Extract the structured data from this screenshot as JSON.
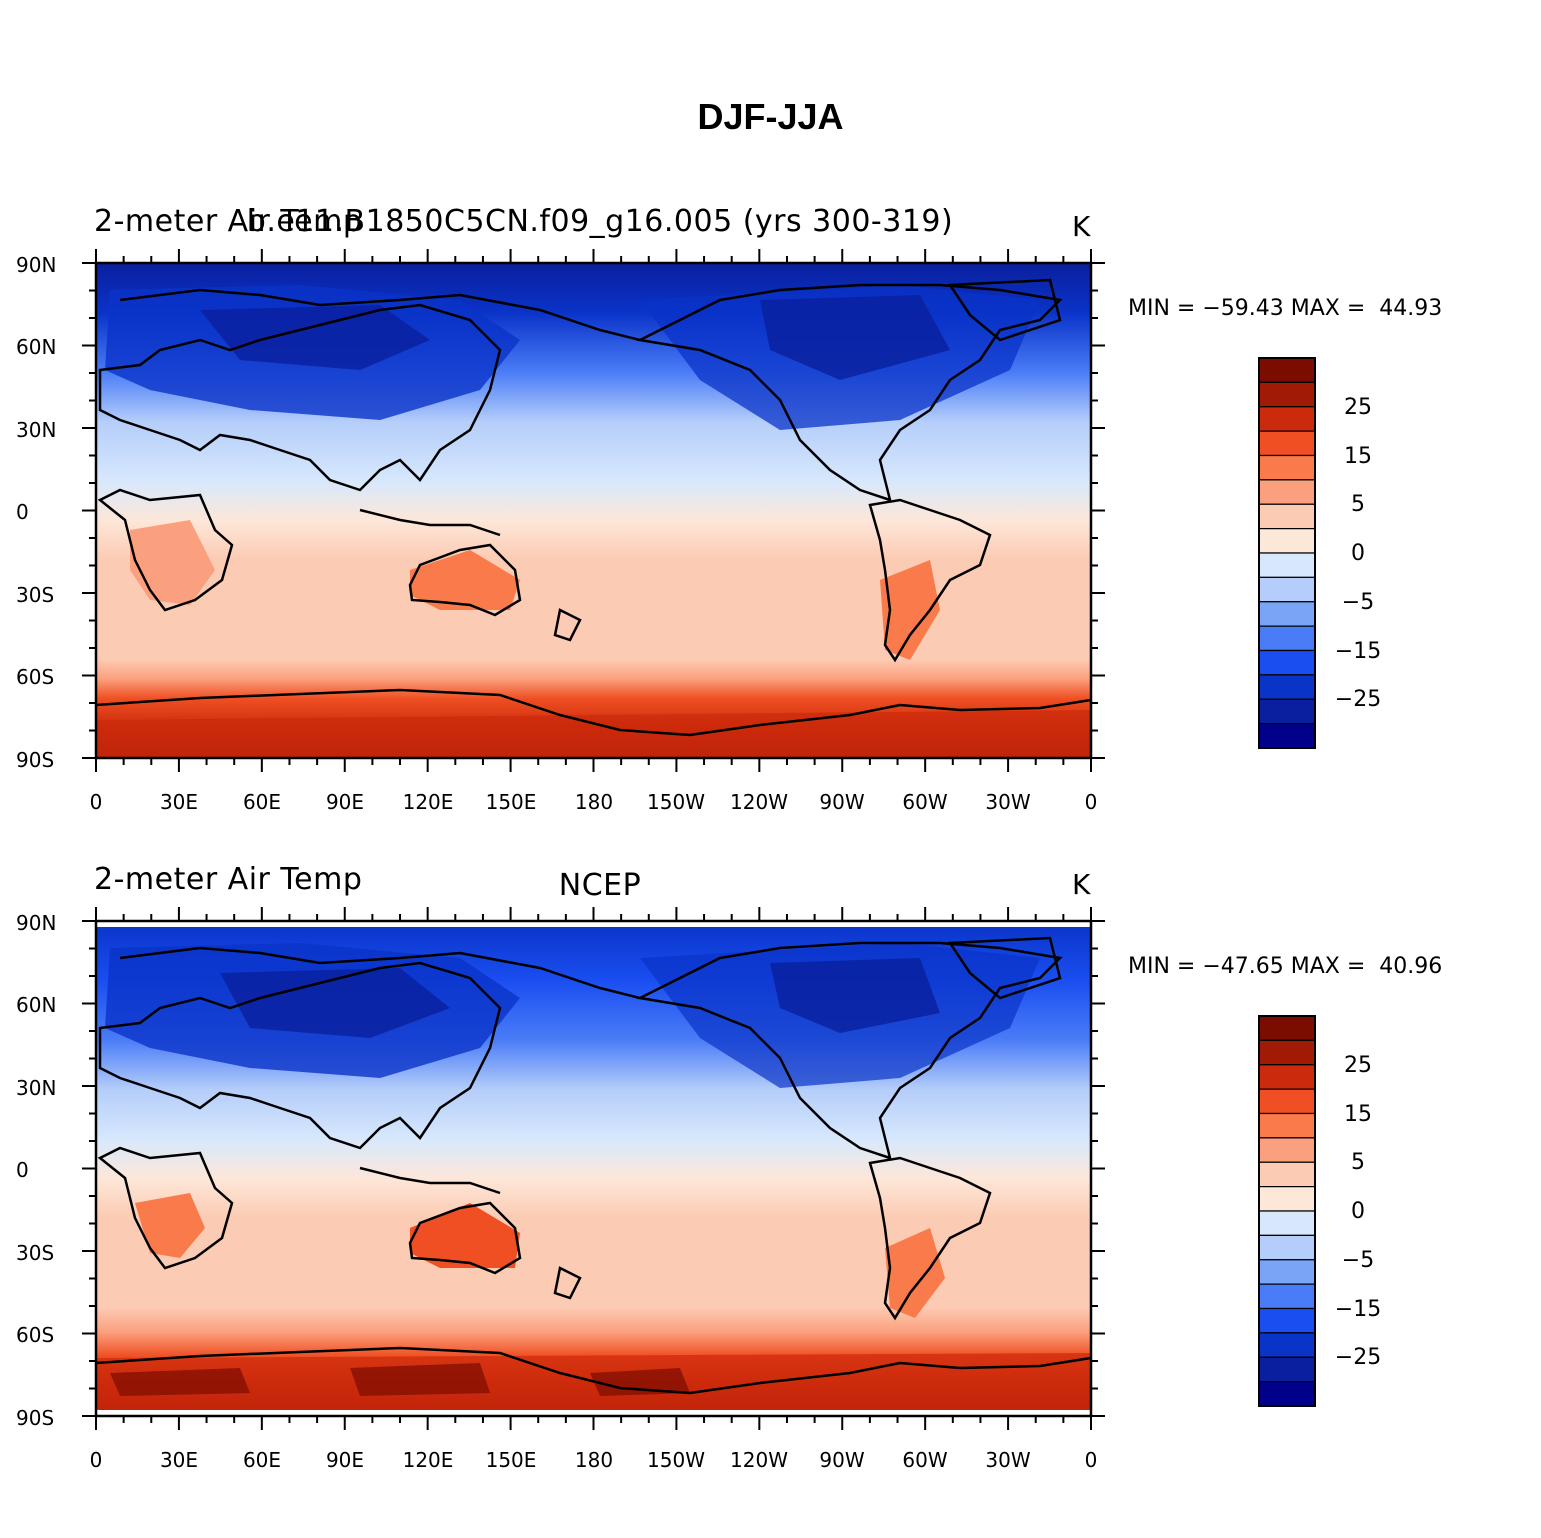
{
  "title": "DJF-JJA",
  "colors": {
    "levels": [
      "#00008b",
      "#0a1f9e",
      "#0a33c8",
      "#1a4ef0",
      "#4a7cf7",
      "#7aa4f6",
      "#b4cdfa",
      "#d7e8fd",
      "#fde7d9",
      "#fccbb3",
      "#fba07e",
      "#f97a4a",
      "#ef4f22",
      "#cc2a0c",
      "#a01a06",
      "#7a0c00"
    ]
  },
  "panels": [
    {
      "left_title": "2-meter Air Temp",
      "center_title": "b.e11.B1850C5CN.f09_g16.005 (yrs 300-319)",
      "units": "K",
      "min_max": "MIN = −59.43 MAX =  44.93",
      "min": -59.43,
      "max": 44.93
    },
    {
      "left_title": "2-meter Air Temp",
      "center_title": "NCEP",
      "units": "K",
      "min_max": "MIN = −47.65 MAX =  40.96",
      "min": -47.65,
      "max": 40.96
    }
  ],
  "y_ticks": [
    "90N",
    "60N",
    "30N",
    "0",
    "30S",
    "60S",
    "90S"
  ],
  "x_ticks": [
    "0",
    "30E",
    "60E",
    "90E",
    "120E",
    "150E",
    "180",
    "150W",
    "120W",
    "90W",
    "60W",
    "30W",
    "0"
  ],
  "colorbar_labels": [
    "25",
    "15",
    "5",
    "0",
    "−5",
    "−15",
    "−25"
  ]
}
